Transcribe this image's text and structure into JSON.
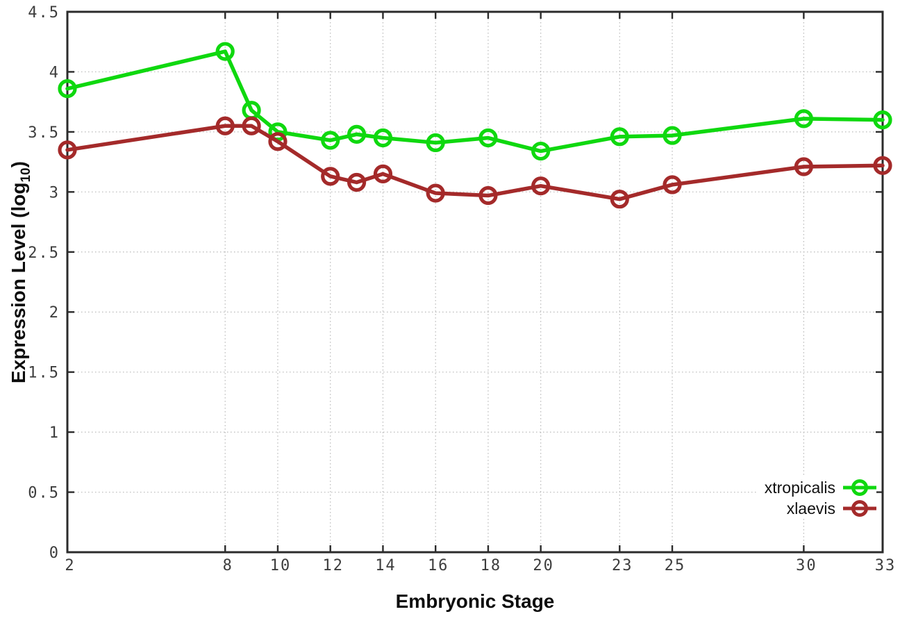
{
  "chart_data": {
    "type": "line",
    "title": "",
    "xlabel": "Embryonic Stage",
    "ylabel": "Expression Level (log10)",
    "ylabel_parts": {
      "main": "Expression Level (log",
      "sub": "10",
      "end": ")"
    },
    "xlim": [
      2,
      33
    ],
    "ylim": [
      0,
      4.5
    ],
    "x_ticks": [
      2,
      8,
      10,
      12,
      14,
      16,
      18,
      20,
      23,
      25,
      30,
      33
    ],
    "y_ticks": [
      0,
      0.5,
      1,
      1.5,
      2,
      2.5,
      3,
      3.5,
      4,
      4.5
    ],
    "grid": true,
    "legend_position": "inside-bottom-right",
    "x": [
      2,
      8,
      9,
      10,
      12,
      13,
      14,
      16,
      18,
      20,
      23,
      25,
      30,
      33
    ],
    "series": [
      {
        "name": "xtropicalis",
        "color": "#0fd80f",
        "values": [
          3.86,
          4.17,
          3.68,
          3.5,
          3.43,
          3.48,
          3.45,
          3.41,
          3.45,
          3.34,
          3.46,
          3.47,
          3.61,
          3.6
        ]
      },
      {
        "name": "xlaevis",
        "color": "#a42a2a",
        "values": [
          3.35,
          3.55,
          3.55,
          3.42,
          3.13,
          3.08,
          3.15,
          2.99,
          2.97,
          3.05,
          2.94,
          3.06,
          3.21,
          3.22
        ]
      }
    ],
    "colors": {
      "grid": "#b8b8b8",
      "border": "#2b2b2b",
      "tick_text": "#3d3d3d",
      "background": "#ffffff"
    }
  }
}
